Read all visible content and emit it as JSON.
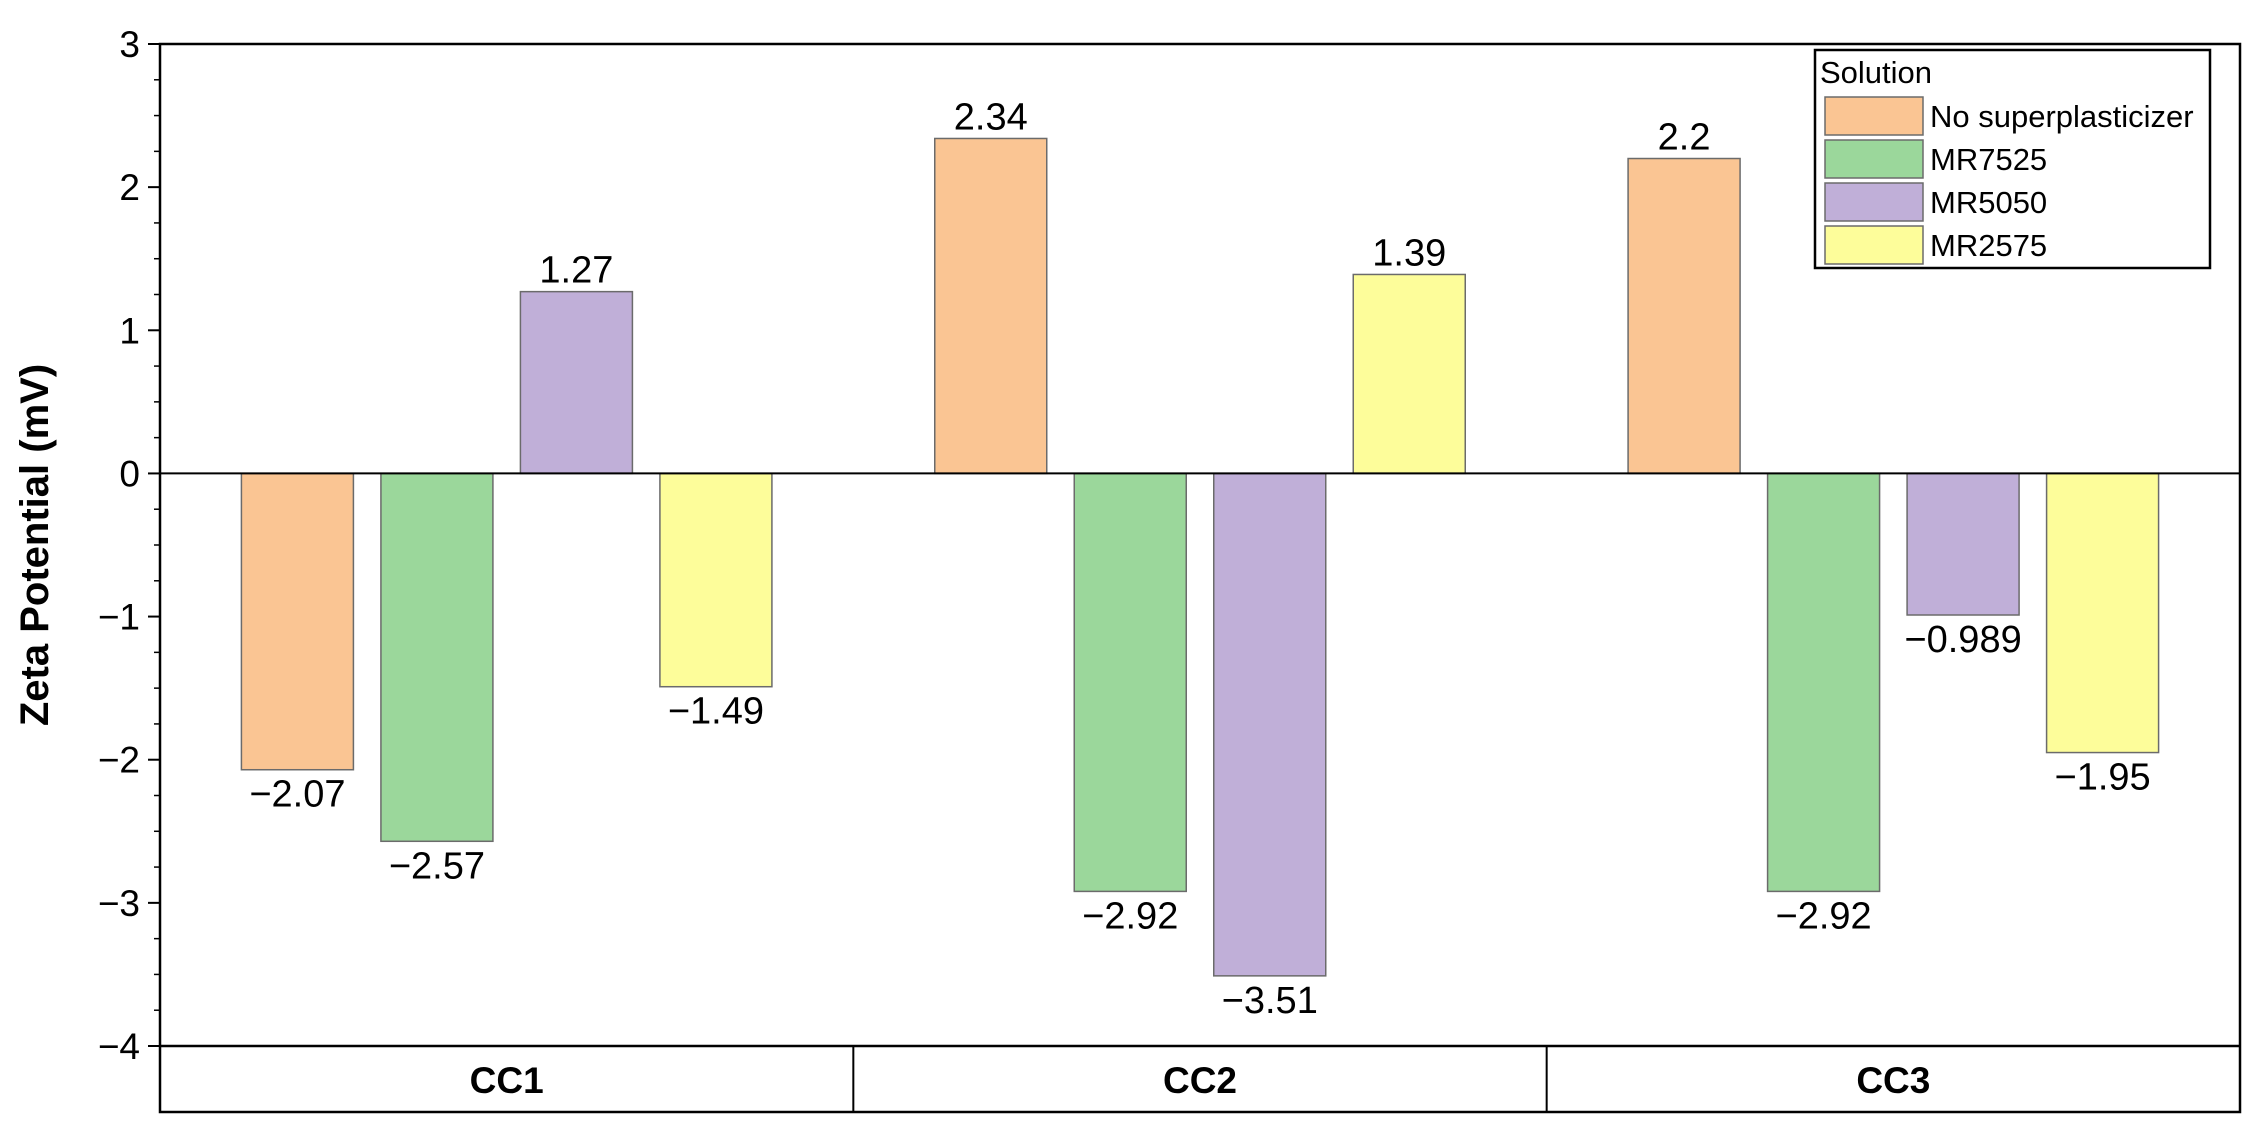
{
  "chart_data": {
    "type": "bar",
    "ylabel": "Zeta Potential (mV)",
    "xlabel": "",
    "ylim": [
      -4,
      3
    ],
    "yticks": [
      -4,
      -3,
      -2,
      -1,
      0,
      1,
      2,
      3
    ],
    "ytick_labels": [
      "−4",
      "−3",
      "−2",
      "−1",
      "0",
      "1",
      "2",
      "3"
    ],
    "categories": [
      "CC1",
      "CC2",
      "CC3"
    ],
    "legend": {
      "title": "Solution",
      "placement": "top-right"
    },
    "series": [
      {
        "name": "No superplasticizer",
        "color": "#fac593",
        "values": [
          -2.07,
          2.34,
          2.2
        ],
        "labels": [
          "−2.07",
          "2.34",
          "2.2"
        ]
      },
      {
        "name": "MR7525",
        "color": "#9bd79b",
        "values": [
          -2.57,
          -2.92,
          -2.92
        ],
        "labels": [
          "−2.57",
          "−2.92",
          "−2.92"
        ]
      },
      {
        "name": "MR5050",
        "color": "#c0afd8",
        "values": [
          1.27,
          -3.51,
          -0.989
        ],
        "labels": [
          "1.27",
          "−3.51",
          "−0.989"
        ]
      },
      {
        "name": "MR2575",
        "color": "#fdfd9a",
        "values": [
          -1.49,
          1.39,
          -1.95
        ],
        "labels": [
          "−1.49",
          "1.39",
          "−1.95"
        ]
      }
    ]
  }
}
